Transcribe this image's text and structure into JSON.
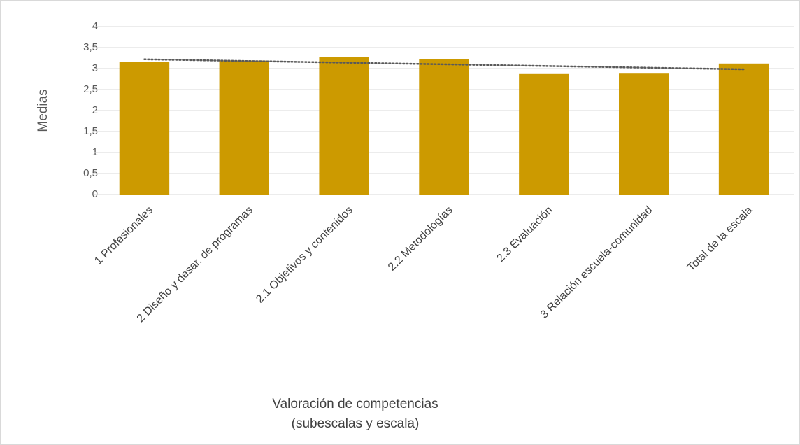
{
  "chart_data": {
    "type": "bar",
    "y_label": "Medias",
    "x_label": [
      "Valoración de competencias",
      "(subescalas y escala)"
    ],
    "categories": [
      "1 Profesionales",
      "2 Diseño y desar. de programas",
      "2.1 Objetivos y contenidos",
      "2.2 Metodologías",
      "2.3 Evaluación",
      "3 Relación escuela-comunidad",
      "Total de la escala"
    ],
    "values": [
      3.15,
      3.19,
      3.27,
      3.23,
      2.87,
      2.88,
      3.12
    ],
    "color": "#cc9a00",
    "trendline": "linear",
    "ylim": [
      0,
      4
    ],
    "yticks": [
      0,
      {
        "value": 0.5,
        "label": "0,5"
      },
      1,
      {
        "value": 1.5,
        "label": "1,5"
      },
      2,
      {
        "value": 2.5,
        "label": "2,5"
      },
      3,
      {
        "value": 3.5,
        "label": "3,5"
      },
      4
    ],
    "grid": true
  }
}
